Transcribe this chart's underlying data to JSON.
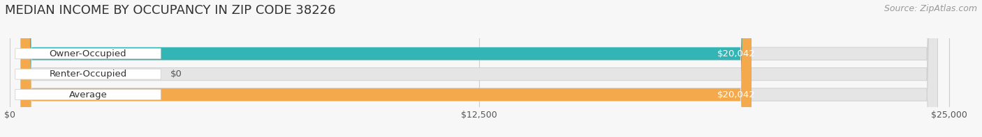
{
  "title": "MEDIAN INCOME BY OCCUPANCY IN ZIP CODE 38226",
  "source": "Source: ZipAtlas.com",
  "categories": [
    "Owner-Occupied",
    "Renter-Occupied",
    "Average"
  ],
  "values": [
    20042,
    0,
    20042
  ],
  "max_value": 25000,
  "bar_colors": [
    "#33b5b5",
    "#c4a8d4",
    "#f5a94d"
  ],
  "value_labels": [
    "$20,042",
    "$0",
    "$20,042"
  ],
  "xtick_values": [
    0,
    12500,
    25000
  ],
  "xtick_labels": [
    "$0",
    "$12,500",
    "$25,000"
  ],
  "bg_color": "#f7f7f7",
  "bar_bg_color": "#e5e5e5",
  "title_fontsize": 13,
  "source_fontsize": 9,
  "cat_fontsize": 9.5,
  "val_fontsize": 9.5,
  "tick_fontsize": 9,
  "bar_height": 0.62,
  "figsize": [
    14.06,
    1.97
  ],
  "dpi": 100
}
